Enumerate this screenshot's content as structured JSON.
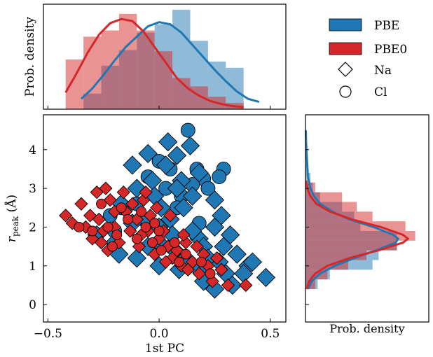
{
  "colors": {
    "pbe": "#1f77b4",
    "pbe0": "#d62728"
  },
  "chart_data": [
    {
      "type": "scatter",
      "panel": "main",
      "xlabel": "1st PC",
      "ylabel_main": "r",
      "ylabel_sub": "peak",
      "ylabel_unit": " (Å)",
      "xlim": [
        -0.52,
        0.57
      ],
      "ylim": [
        -0.45,
        4.9
      ],
      "x_ticks": [
        -0.5,
        0.0,
        0.5
      ],
      "x_tick_labels": [
        "−0.5",
        "0.0",
        "0.5"
      ],
      "y_ticks": [
        0,
        1,
        2,
        3,
        4
      ],
      "y_tick_labels": [
        "0",
        "1",
        "2",
        "3",
        "4"
      ],
      "series": [
        {
          "name": "PBE",
          "marker": "Cl",
          "points": [
            [
              0.13,
              4.5
            ],
            [
              0.0,
              3.7
            ],
            [
              0.05,
              3.5
            ],
            [
              0.17,
              3.5
            ],
            [
              0.29,
              3.5
            ],
            [
              0.27,
              3.3
            ],
            [
              0.2,
              3.25
            ],
            [
              0.15,
              3.1
            ],
            [
              -0.05,
              3.3
            ],
            [
              0.03,
              3.0
            ],
            [
              -0.1,
              2.6
            ],
            [
              0.1,
              2.8
            ],
            [
              -0.15,
              2.5
            ],
            [
              -0.07,
              2.2
            ],
            [
              -0.22,
              2.3
            ],
            [
              0.08,
              2.5
            ],
            [
              0.18,
              2.1
            ],
            [
              -0.2,
              1.9
            ],
            [
              -0.17,
              2.5
            ],
            [
              0.22,
              3.0
            ]
          ]
        },
        {
          "name": "PBE",
          "marker": "Na",
          "points": [
            [
              0.04,
              4.2
            ],
            [
              0.14,
              4.1
            ],
            [
              -0.05,
              3.9
            ],
            [
              0.08,
              3.85
            ],
            [
              0.03,
              3.6
            ],
            [
              -0.12,
              3.6
            ],
            [
              0.18,
              3.4
            ],
            [
              -0.03,
              3.2
            ],
            [
              -0.1,
              3.0
            ],
            [
              0.1,
              3.2
            ],
            [
              0.15,
              2.8
            ],
            [
              0.25,
              2.7
            ],
            [
              0.01,
              2.5
            ],
            [
              -0.17,
              2.6
            ],
            [
              0.11,
              2.5
            ],
            [
              0.05,
              2.2
            ],
            [
              0.25,
              2.0
            ],
            [
              0.18,
              1.7
            ],
            [
              0.32,
              1.8
            ],
            [
              0.2,
              1.5
            ],
            [
              0.35,
              1.3
            ],
            [
              0.27,
              1.1
            ],
            [
              0.4,
              1.0
            ],
            [
              0.48,
              0.7
            ],
            [
              0.3,
              0.8
            ],
            [
              0.2,
              0.6
            ],
            [
              0.25,
              0.4
            ],
            [
              0.33,
              0.5
            ],
            [
              -0.05,
              1.5
            ],
            [
              -0.2,
              1.6
            ],
            [
              -0.1,
              1.2
            ],
            [
              0.0,
              1.0
            ],
            [
              0.07,
              1.4
            ],
            [
              0.12,
              1.2
            ],
            [
              -0.28,
              1.8
            ],
            [
              -0.12,
              2.1
            ],
            [
              0.0,
              2.0
            ],
            [
              0.06,
              1.8
            ],
            [
              0.15,
              1.9
            ],
            [
              0.09,
              0.9
            ],
            [
              0.22,
              1.2
            ],
            [
              0.29,
              1.5
            ],
            [
              0.38,
              0.8
            ],
            [
              0.42,
              1.1
            ],
            [
              -0.02,
              2.8
            ],
            [
              0.28,
              2.3
            ],
            [
              0.08,
              3.0
            ],
            [
              -0.18,
              1.3
            ],
            [
              0.0,
              1.6
            ],
            [
              0.18,
              0.9
            ]
          ]
        },
        {
          "name": "PBE0",
          "marker": "Na",
          "points": [
            [
              -0.42,
              2.3
            ],
            [
              -0.31,
              2.3
            ],
            [
              -0.33,
              2.0
            ],
            [
              -0.3,
              1.7
            ],
            [
              -0.27,
              2.2
            ],
            [
              -0.24,
              3.0
            ],
            [
              -0.22,
              2.7
            ],
            [
              -0.2,
              2.0
            ],
            [
              -0.18,
              1.6
            ],
            [
              -0.23,
              1.4
            ],
            [
              -0.15,
              2.4
            ],
            [
              -0.13,
              1.9
            ],
            [
              -0.1,
              2.2
            ],
            [
              -0.09,
              1.5
            ],
            [
              -0.07,
              2.7
            ],
            [
              -0.06,
              2.9
            ],
            [
              -0.04,
              2.3
            ],
            [
              -0.02,
              1.3
            ],
            [
              0.0,
              1.7
            ],
            [
              0.02,
              1.9
            ],
            [
              0.04,
              1.5
            ],
            [
              0.06,
              1.2
            ],
            [
              0.08,
              1.4
            ],
            [
              0.1,
              1.0
            ],
            [
              0.12,
              1.6
            ],
            [
              0.15,
              1.1
            ],
            [
              0.18,
              0.8
            ],
            [
              0.2,
              1.3
            ],
            [
              0.24,
              0.6
            ],
            [
              0.28,
              0.9
            ],
            [
              -0.35,
              2.6
            ],
            [
              -0.28,
              2.9
            ],
            [
              -0.25,
              1.9
            ],
            [
              -0.16,
              2.9
            ],
            [
              -0.12,
              2.6
            ],
            [
              -0.05,
              1.9
            ],
            [
              0.03,
              1.1
            ],
            [
              0.13,
              0.9
            ],
            [
              0.22,
              1.0
            ],
            [
              0.39,
              0.5
            ],
            [
              -0.39,
              2.1
            ],
            [
              -0.2,
              2.4
            ],
            [
              -0.08,
              1.8
            ],
            [
              0.05,
              2.3
            ],
            [
              0.11,
              1.8
            ],
            [
              0.17,
              1.5
            ],
            [
              -0.26,
              1.6
            ],
            [
              -0.01,
              2.5
            ],
            [
              0.26,
              1.2
            ],
            [
              0.31,
              0.5
            ]
          ]
        },
        {
          "name": "PBE0",
          "marker": "Cl",
          "points": [
            [
              -0.3,
              1.9
            ],
            [
              -0.26,
              2.6
            ],
            [
              -0.23,
              2.0
            ],
            [
              -0.19,
              1.8
            ],
            [
              -0.14,
              2.2
            ],
            [
              -0.1,
              1.7
            ],
            [
              -0.06,
              2.0
            ],
            [
              -0.03,
              1.6
            ],
            [
              0.01,
              1.4
            ],
            [
              0.07,
              1.6
            ],
            [
              0.12,
              1.3
            ],
            [
              0.19,
              1.1
            ],
            [
              -0.17,
              2.5
            ],
            [
              -0.08,
              2.4
            ],
            [
              0.0,
              1.9
            ],
            [
              -0.21,
              1.5
            ],
            [
              0.09,
              1.1
            ],
            [
              0.23,
              0.8
            ],
            [
              -0.36,
              2.0
            ],
            [
              -0.02,
              2.1
            ]
          ]
        }
      ]
    },
    {
      "type": "area",
      "panel": "top-histogram",
      "ylabel": "Prob. density",
      "bins_x": [
        -0.42,
        -0.34,
        -0.26,
        -0.18,
        -0.1,
        -0.02,
        0.06,
        0.14,
        0.22,
        0.3,
        0.38
      ],
      "series": [
        {
          "name": "PBE",
          "hist": [
            0.0,
            0.15,
            0.42,
            0.57,
            0.74,
            0.82,
            0.96,
            0.66,
            0.46,
            0.4
          ],
          "kde_x": [
            -0.35,
            -0.3,
            -0.25,
            -0.2,
            -0.15,
            -0.1,
            -0.05,
            0.0,
            0.05,
            0.1,
            0.15,
            0.2,
            0.25,
            0.3,
            0.35,
            0.4,
            0.45
          ],
          "kde_y": [
            0.1,
            0.2,
            0.33,
            0.47,
            0.6,
            0.7,
            0.8,
            0.84,
            0.82,
            0.74,
            0.62,
            0.5,
            0.38,
            0.27,
            0.17,
            0.1,
            0.07
          ]
        },
        {
          "name": "PBE0",
          "hist": [
            0.48,
            0.7,
            0.76,
            0.92,
            0.76,
            0.56,
            0.3,
            0.22,
            0.12,
            0.06
          ],
          "kde_x": [
            -0.42,
            -0.37,
            -0.32,
            -0.27,
            -0.22,
            -0.17,
            -0.12,
            -0.07,
            -0.02,
            0.03,
            0.08,
            0.13,
            0.18,
            0.23,
            0.28,
            0.33,
            0.38
          ],
          "kde_y": [
            0.16,
            0.35,
            0.55,
            0.72,
            0.83,
            0.87,
            0.85,
            0.75,
            0.6,
            0.45,
            0.3,
            0.2,
            0.13,
            0.08,
            0.05,
            0.03,
            0.02
          ]
        }
      ]
    },
    {
      "type": "area",
      "panel": "right-histogram",
      "xlabel": "Prob. density",
      "bins_y": [
        0.4,
        0.65,
        0.9,
        1.15,
        1.4,
        1.65,
        1.9,
        2.15,
        2.4,
        2.65,
        2.9,
        3.15,
        3.4,
        3.65
      ],
      "series": [
        {
          "name": "PBE",
          "hist": [
            0.1,
            0.2,
            0.55,
            0.6,
            0.75,
            0.75,
            0.45,
            0.4,
            0.3,
            0.12,
            0.06,
            0.04,
            0.02
          ],
          "kde_y": [
            0.4,
            0.6,
            0.8,
            1.0,
            1.2,
            1.4,
            1.6,
            1.7,
            1.8,
            2.0,
            2.2,
            2.4,
            2.6,
            2.8,
            3.0,
            3.3,
            3.6,
            3.9,
            4.2,
            4.5
          ],
          "kde_x": [
            0.02,
            0.05,
            0.12,
            0.24,
            0.4,
            0.58,
            0.74,
            0.76,
            0.72,
            0.56,
            0.36,
            0.22,
            0.12,
            0.07,
            0.04,
            0.02,
            0.015,
            0.01,
            0.005,
            0.003
          ]
        },
        {
          "name": "PBE0",
          "hist": [
            0.08,
            0.18,
            0.35,
            0.5,
            0.75,
            0.9,
            0.82,
            0.55,
            0.42,
            0.3,
            0.08,
            0.0,
            0.0
          ],
          "kde_y": [
            0.4,
            0.6,
            0.8,
            1.0,
            1.2,
            1.4,
            1.6,
            1.7,
            1.8,
            2.0,
            2.2,
            2.4,
            2.6,
            2.8,
            3.0,
            3.2
          ],
          "kde_x": [
            0.01,
            0.03,
            0.08,
            0.18,
            0.36,
            0.6,
            0.8,
            0.84,
            0.8,
            0.62,
            0.38,
            0.2,
            0.09,
            0.04,
            0.015,
            0.005
          ]
        }
      ]
    }
  ],
  "legend": {
    "placement": "top-right",
    "items": [
      {
        "label": "PBE",
        "kind": "patch",
        "color": "#1f77b4"
      },
      {
        "label": "PBE0",
        "kind": "patch",
        "color": "#d62728"
      },
      {
        "label": "Na",
        "kind": "diamond"
      },
      {
        "label": "Cl",
        "kind": "circle"
      }
    ]
  }
}
